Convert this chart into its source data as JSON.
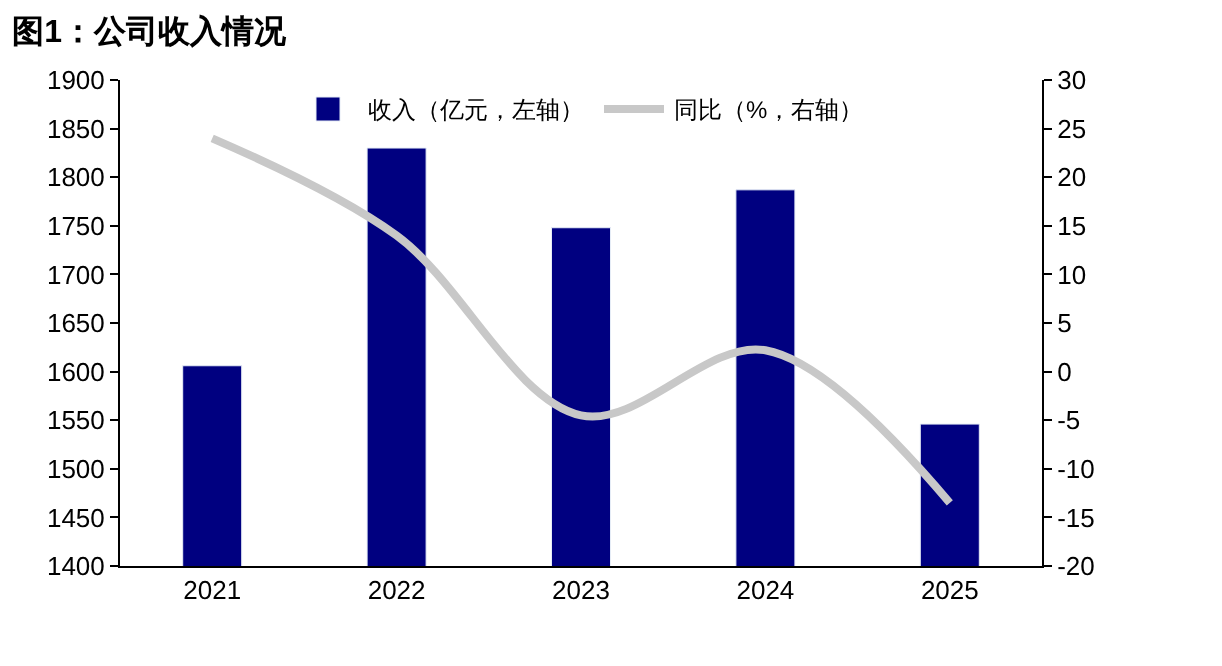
{
  "chart_data": {
    "type": "bar",
    "title": "图1：公司收入情况",
    "categories": [
      "2021",
      "2022",
      "2023",
      "2024",
      "2025"
    ],
    "series": [
      {
        "name": "收入（亿元，左轴）",
        "color": "#000080",
        "values": [
          1606,
          1830,
          1748,
          1787,
          1546
        ]
      },
      {
        "name": "同比（%，右轴）",
        "type": "line",
        "axis": "y2",
        "color": "#c8c8c8",
        "values": [
          24,
          14,
          -4.5,
          2.2,
          -13.5
        ]
      }
    ],
    "ylim": [
      1400,
      1900
    ],
    "yticks": [
      1400,
      1450,
      1500,
      1550,
      1600,
      1650,
      1700,
      1750,
      1800,
      1850,
      1900
    ],
    "y2lim": [
      -20,
      30
    ],
    "y2ticks": [
      -20,
      -15,
      -10,
      -5,
      0,
      5,
      10,
      15,
      20,
      25,
      30
    ],
    "legend": "top",
    "marker": "none",
    "line_style": "solid"
  }
}
